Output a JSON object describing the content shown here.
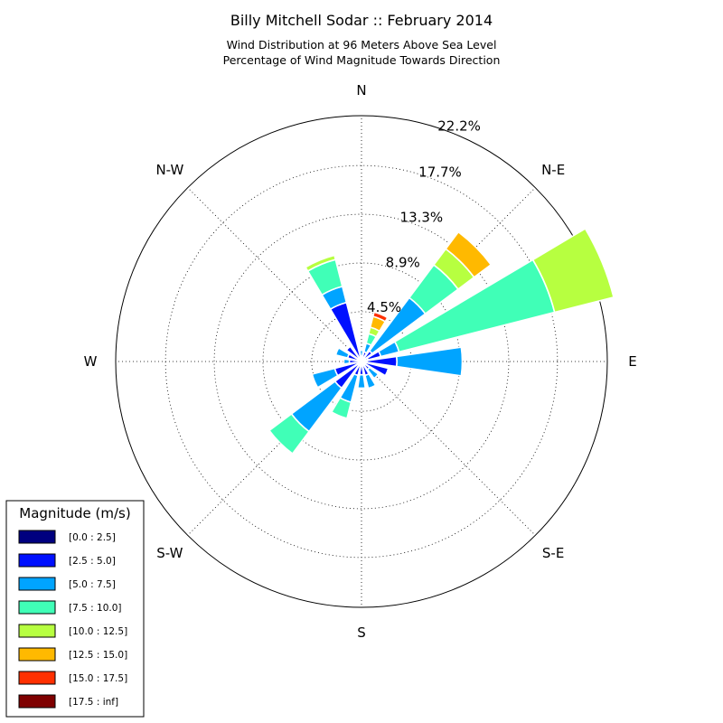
{
  "chart_data": {
    "type": "windrose",
    "title": "Billy Mitchell Sodar :: February 2014",
    "subtitle_lines": [
      "Wind Distribution at 96 Meters Above Sea Level",
      "Percentage of Wind Magnitude Towards Direction"
    ],
    "direction_labels": [
      "N",
      "N-E",
      "E",
      "S-E",
      "S",
      "S-W",
      "W",
      "N-W"
    ],
    "radial_ticks": [
      4.5,
      8.9,
      13.3,
      17.7,
      22.2
    ],
    "radial_tick_labels": [
      "4.5%",
      "8.9%",
      "13.3%",
      "17.7%",
      "22.2%"
    ],
    "radial_max": 22.2,
    "grid": true,
    "legend": {
      "title": "Magnitude (m/s)",
      "placement": "bottom-left",
      "bins": [
        {
          "label": "[0.0 : 2.5]",
          "color": "#00007f"
        },
        {
          "label": "[2.5 : 5.0]",
          "color": "#0010ff"
        },
        {
          "label": "[5.0 : 7.5]",
          "color": "#00a4ff"
        },
        {
          "label": "[7.5 : 10.0]",
          "color": "#40ffb7"
        },
        {
          "label": "[10.0 : 12.5]",
          "color": "#b7ff40"
        },
        {
          "label": "[12.5 : 15.0]",
          "color": "#ffb900"
        },
        {
          "label": "[15.0 : 17.5]",
          "color": "#ff3000"
        },
        {
          "label": "[17.5 : inf]",
          "color": "#7f0000"
        }
      ]
    },
    "sectors": [
      {
        "direction_deg": 0,
        "cumulative": [
          0.2,
          0.5,
          1.0
        ]
      },
      {
        "direction_deg": 22.5,
        "cumulative": [
          0.3,
          0.9,
          1.7,
          2.6,
          3.2,
          4.2,
          4.6
        ]
      },
      {
        "direction_deg": 45,
        "cumulative": [
          0.4,
          1.2,
          7.2,
          10.9,
          12.7,
          14.6
        ]
      },
      {
        "direction_deg": 67.5,
        "cumulative": [
          0.6,
          1.8,
          3.5,
          18.0,
          23.5
        ]
      },
      {
        "direction_deg": 90,
        "cumulative": [
          0.5,
          3.2,
          9.1
        ]
      },
      {
        "direction_deg": 112.5,
        "cumulative": [
          0.4,
          2.5
        ]
      },
      {
        "direction_deg": 135,
        "cumulative": [
          0.3,
          0.9,
          1.9
        ]
      },
      {
        "direction_deg": 157.5,
        "cumulative": [
          0.2,
          1.3,
          2.5
        ]
      },
      {
        "direction_deg": 180,
        "cumulative": [
          0.3,
          1.2,
          2.4
        ]
      },
      {
        "direction_deg": 202.5,
        "cumulative": [
          0.3,
          1.3,
          3.8,
          5.3
        ]
      },
      {
        "direction_deg": 225,
        "cumulative": [
          0.3,
          3.0,
          7.9,
          10.4
        ]
      },
      {
        "direction_deg": 247.5,
        "cumulative": [
          0.4,
          2.5,
          4.6
        ]
      },
      {
        "direction_deg": 270,
        "cumulative": [
          0.3,
          1.1,
          1.6
        ]
      },
      {
        "direction_deg": 292.5,
        "cumulative": [
          0.3,
          1.3,
          2.4
        ]
      },
      {
        "direction_deg": 315,
        "cumulative": [
          0.4,
          1.7
        ]
      },
      {
        "direction_deg": 337.5,
        "cumulative": [
          0.3,
          5.5,
          7.0,
          9.5,
          9.9
        ]
      }
    ]
  }
}
